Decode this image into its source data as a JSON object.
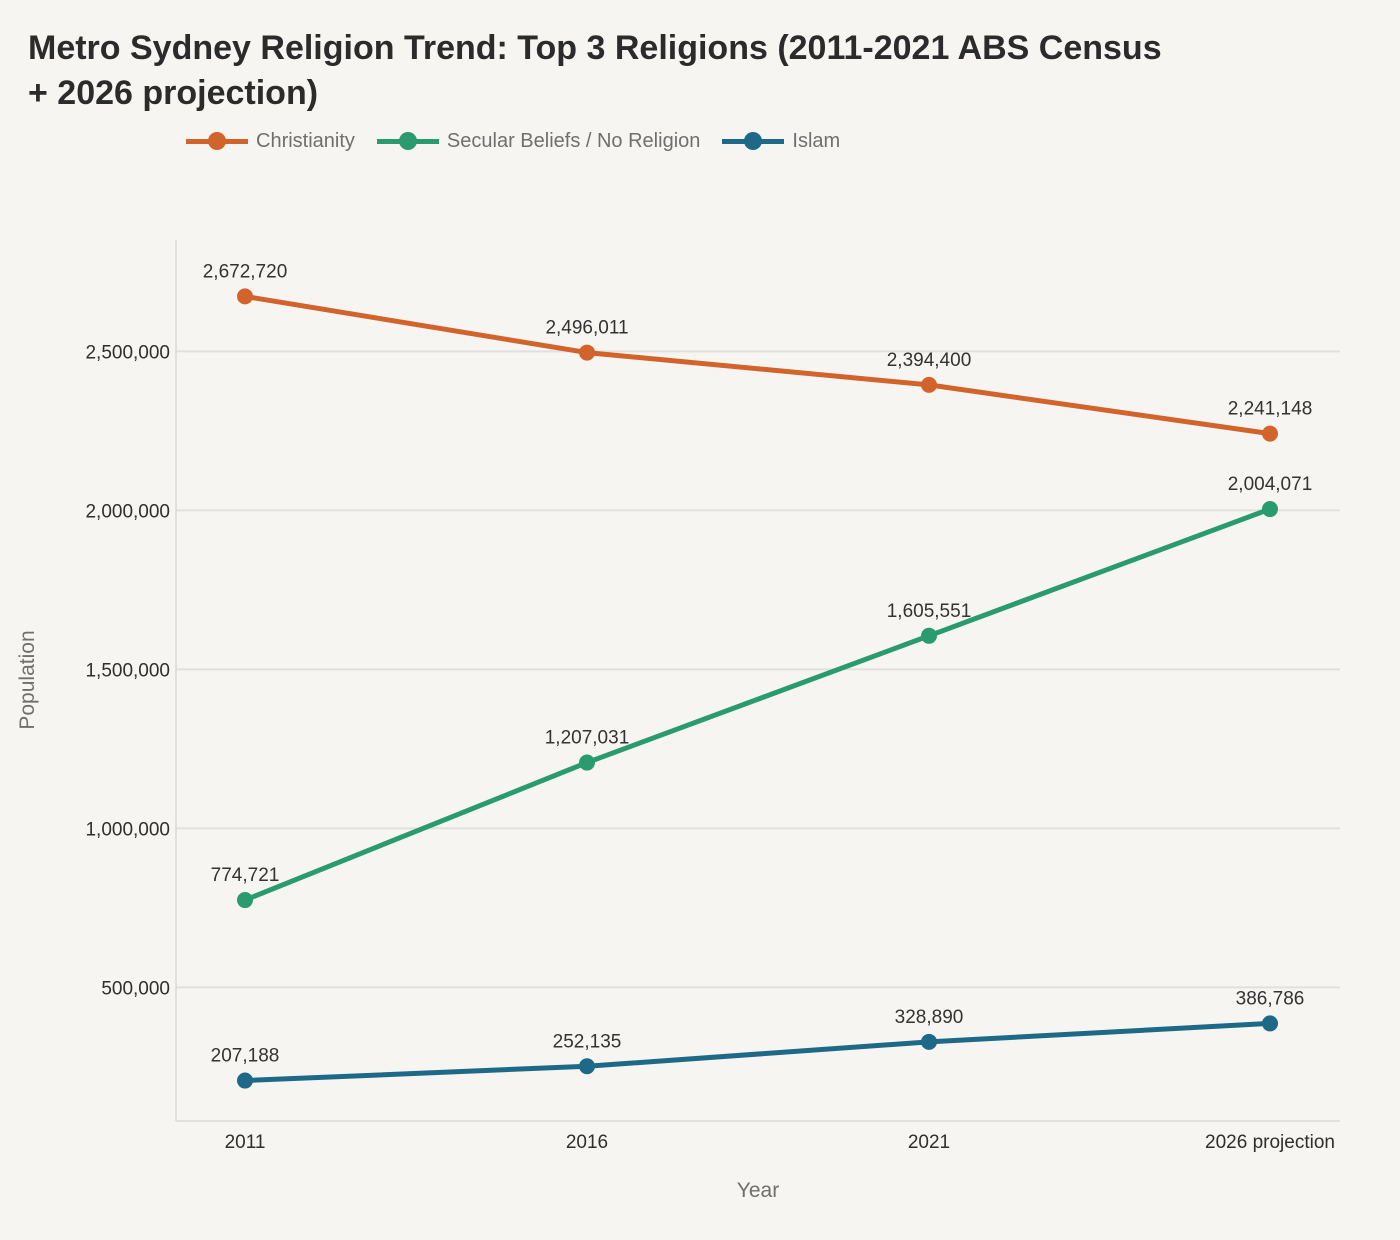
{
  "chart_data": {
    "type": "line",
    "title": "Metro Sydney Religion Trend: Top 3 Religions (2011-2021 ABS Census + 2026 projection)",
    "xlabel": "Year",
    "ylabel": "Population",
    "categories": [
      "2011",
      "2016",
      "2021",
      "2026 projection"
    ],
    "ylim": [
      80000,
      2850000
    ],
    "yticks": [
      500000,
      1000000,
      1500000,
      2000000,
      2500000
    ],
    "ytick_labels": [
      "500,000",
      "1,000,000",
      "1,500,000",
      "2,000,000",
      "2,500,000"
    ],
    "grid": true,
    "legend_position": "top-left",
    "series": [
      {
        "name": "Christianity",
        "color": "#d2632a",
        "values": [
          2672720,
          2496011,
          2394400,
          2241148
        ],
        "labels": [
          "2,672,720",
          "2,496,011",
          "2,394,400",
          "2,241,148"
        ]
      },
      {
        "name": "Secular Beliefs / No Religion",
        "color": "#2a9b6f",
        "values": [
          774721,
          1207031,
          1605551,
          2004071
        ],
        "labels": [
          "774,721",
          "1,207,031",
          "1,605,551",
          "2,004,071"
        ]
      },
      {
        "name": "Islam",
        "color": "#1e6987",
        "values": [
          207188,
          252135,
          328890,
          386786
        ],
        "labels": [
          "207,188",
          "252,135",
          "328,890",
          "386,786"
        ]
      }
    ]
  }
}
